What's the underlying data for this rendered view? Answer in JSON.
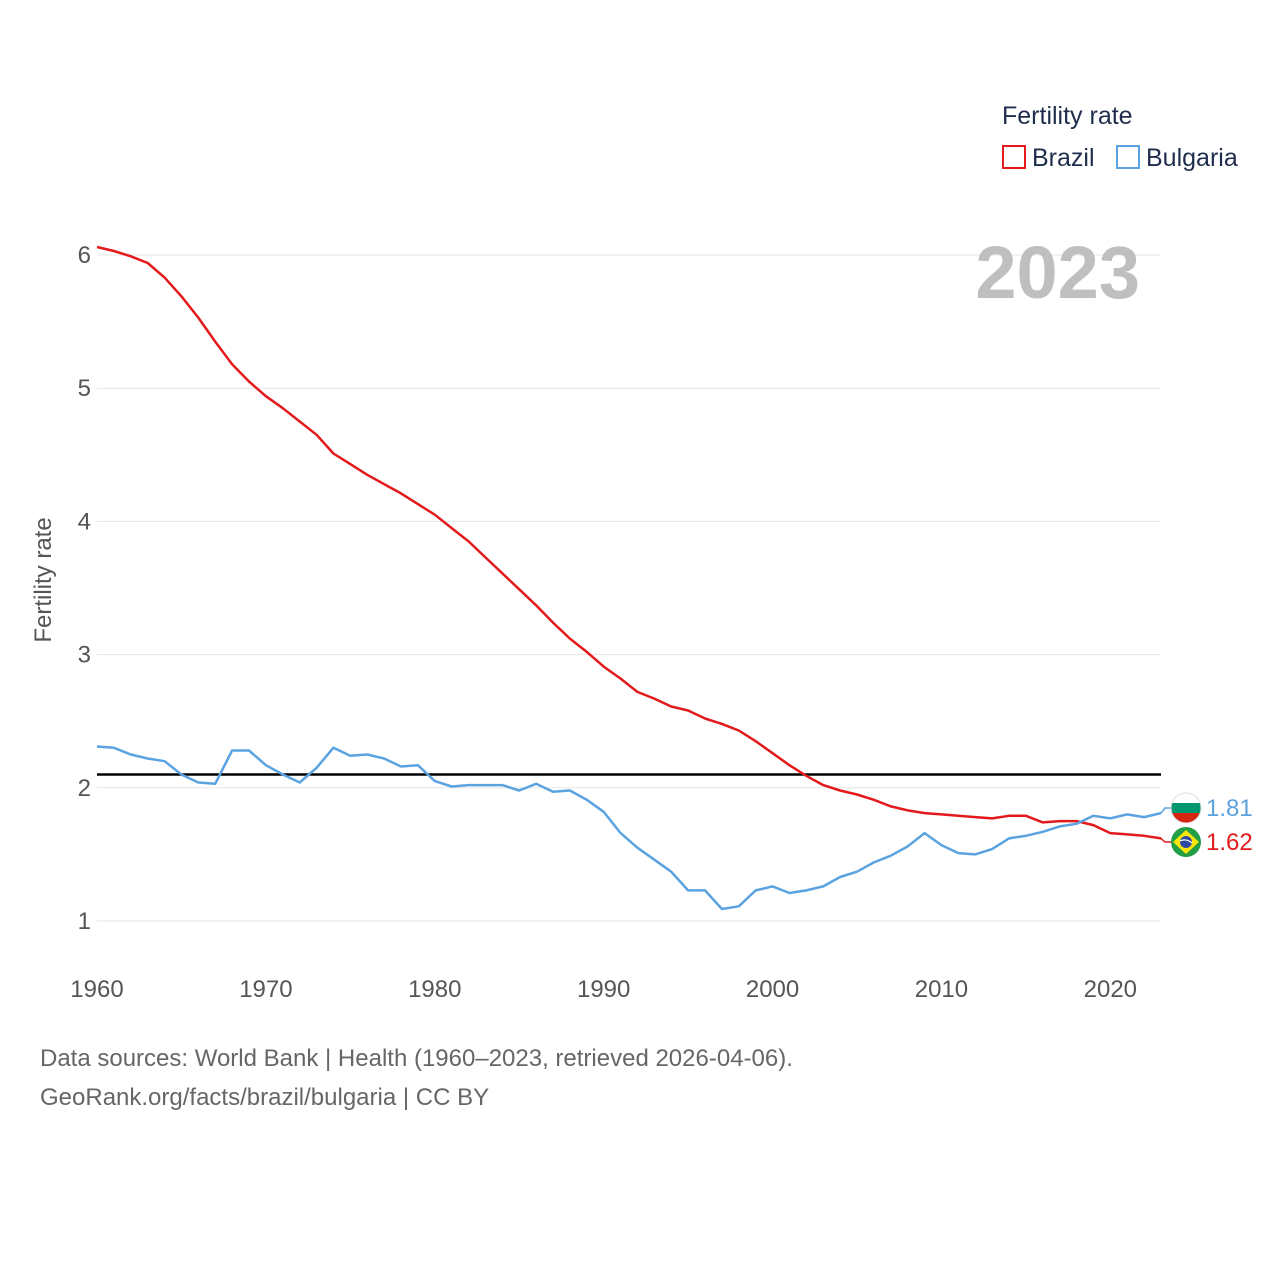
{
  "chart_data": {
    "type": "line",
    "title": "",
    "ylabel": "Fertility rate",
    "xlabel": "",
    "xlim": [
      1960,
      2023
    ],
    "ylim": [
      0.75,
      6.3
    ],
    "yticks": [
      1,
      2,
      3,
      4,
      5,
      6
    ],
    "xticks": [
      1960,
      1970,
      1980,
      1990,
      2000,
      2010,
      2020
    ],
    "grid": true,
    "reference_line": 2.1,
    "year_label": "2023",
    "legend": {
      "title": "Fertility rate",
      "position": "top-right"
    },
    "x": [
      1960,
      1961,
      1962,
      1963,
      1964,
      1965,
      1966,
      1967,
      1968,
      1969,
      1970,
      1971,
      1972,
      1973,
      1974,
      1975,
      1976,
      1977,
      1978,
      1979,
      1980,
      1981,
      1982,
      1983,
      1984,
      1985,
      1986,
      1987,
      1988,
      1989,
      1990,
      1991,
      1992,
      1993,
      1994,
      1995,
      1996,
      1997,
      1998,
      1999,
      2000,
      2001,
      2002,
      2003,
      2004,
      2005,
      2006,
      2007,
      2008,
      2009,
      2010,
      2011,
      2012,
      2013,
      2014,
      2015,
      2016,
      2017,
      2018,
      2019,
      2020,
      2021,
      2022,
      2023
    ],
    "series": [
      {
        "name": "Brazil",
        "color": "#e31a1c",
        "end_label": "1.62",
        "values": [
          6.06,
          6.03,
          5.99,
          5.94,
          5.83,
          5.69,
          5.53,
          5.35,
          5.18,
          5.05,
          4.94,
          4.85,
          4.75,
          4.65,
          4.51,
          4.43,
          4.35,
          4.28,
          4.21,
          4.13,
          4.05,
          3.95,
          3.85,
          3.73,
          3.61,
          3.49,
          3.37,
          3.24,
          3.12,
          3.02,
          2.91,
          2.82,
          2.72,
          2.67,
          2.61,
          2.58,
          2.52,
          2.48,
          2.43,
          2.35,
          2.26,
          2.17,
          2.09,
          2.02,
          1.98,
          1.95,
          1.91,
          1.86,
          1.83,
          1.81,
          1.8,
          1.79,
          1.78,
          1.77,
          1.79,
          1.79,
          1.74,
          1.75,
          1.75,
          1.72,
          1.66,
          1.65,
          1.64,
          1.62
        ]
      },
      {
        "name": "Bulgaria",
        "color": "#5ba3e0",
        "end_label": "1.81",
        "values": [
          2.31,
          2.3,
          2.25,
          2.22,
          2.2,
          2.1,
          2.04,
          2.03,
          2.28,
          2.28,
          2.17,
          2.1,
          2.04,
          2.15,
          2.3,
          2.24,
          2.25,
          2.22,
          2.16,
          2.17,
          2.05,
          2.01,
          2.02,
          2.02,
          2.02,
          1.98,
          2.03,
          1.97,
          1.98,
          1.91,
          1.82,
          1.66,
          1.55,
          1.46,
          1.37,
          1.23,
          1.23,
          1.09,
          1.11,
          1.23,
          1.26,
          1.21,
          1.23,
          1.26,
          1.33,
          1.37,
          1.44,
          1.49,
          1.56,
          1.66,
          1.57,
          1.51,
          1.5,
          1.54,
          1.62,
          1.64,
          1.67,
          1.71,
          1.73,
          1.79,
          1.77,
          1.8,
          1.78,
          1.81
        ]
      }
    ]
  },
  "footer": {
    "line1": "Data sources: World Bank | Health (1960–2023, retrieved 2026-04-06).",
    "line2": "GeoRank.org/facts/brazil/bulgaria | CC BY"
  }
}
